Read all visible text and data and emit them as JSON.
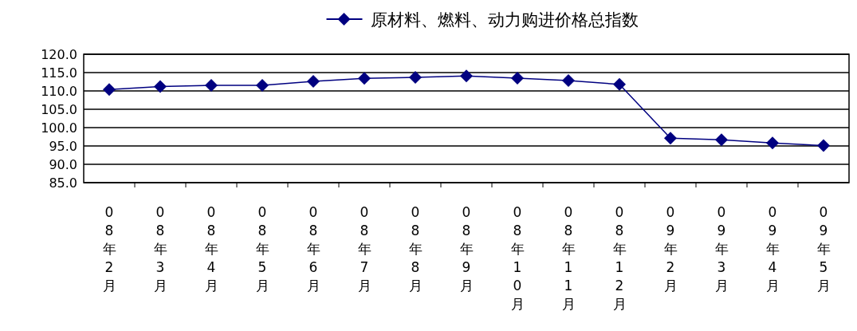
{
  "chart_data": {
    "type": "line",
    "categories": [
      "08年2月",
      "08年3月",
      "08年4月",
      "08年5月",
      "08年6月",
      "08年7月",
      "08年8月",
      "08年9月",
      "08年10月",
      "08年11月",
      "08年12月",
      "09年2月",
      "09年3月",
      "09年4月",
      "09年5月"
    ],
    "series": [
      {
        "name": "原材料、燃料、动力购进价格总指数",
        "color": "#000080",
        "values": [
          110.4,
          111.2,
          111.5,
          111.5,
          112.6,
          113.4,
          113.7,
          114.1,
          113.5,
          112.8,
          111.8,
          97.1,
          96.7,
          95.8,
          95.1
        ]
      }
    ],
    "ylim": [
      85,
      120
    ],
    "yticks": [
      {
        "value": 85,
        "label": "85.0"
      },
      {
        "value": 90,
        "label": "90.0"
      },
      {
        "value": 95,
        "label": "95.0"
      },
      {
        "value": 100,
        "label": "100.0"
      },
      {
        "value": 105,
        "label": "105.0"
      },
      {
        "value": 110,
        "label": "110.0"
      },
      {
        "value": 115,
        "label": "115.0"
      },
      {
        "value": 120,
        "label": "120.0"
      }
    ],
    "grid": "y",
    "legend": "top",
    "marker": "diamond",
    "line_style": "solid"
  }
}
